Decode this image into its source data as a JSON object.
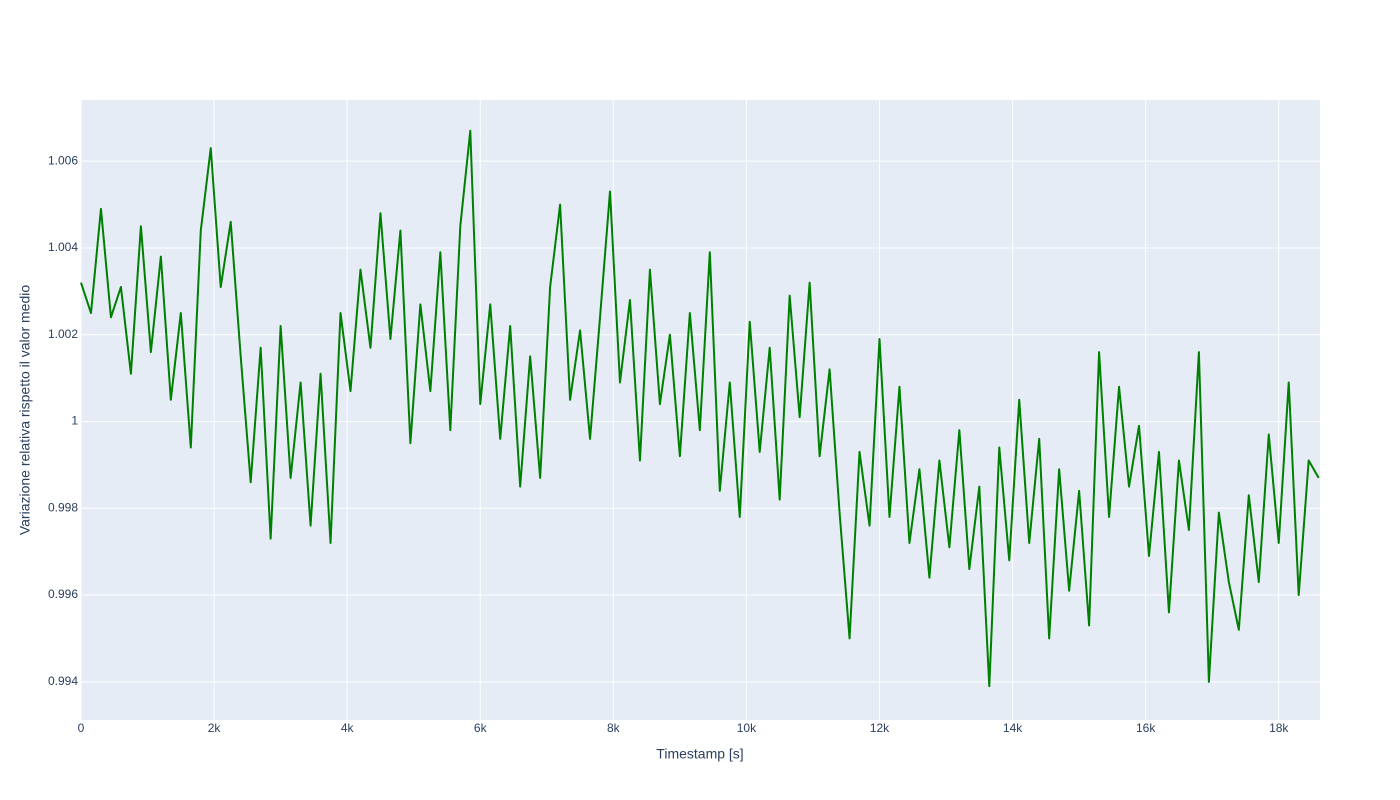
{
  "chart_data": {
    "type": "line",
    "x_label": "Timestamp [s]",
    "y_label": "Variazione relativa rispetto il valor medio",
    "color": "#008000",
    "grid": true,
    "xlim": [
      0,
      18620
    ],
    "ylim": [
      0.99312,
      1.00741
    ],
    "xticks": [
      0,
      {
        "value": 2000,
        "label": "2k"
      },
      {
        "value": 4000,
        "label": "4k"
      },
      {
        "value": 6000,
        "label": "6k"
      },
      {
        "value": 8000,
        "label": "8k"
      },
      {
        "value": 10000,
        "label": "10k"
      },
      {
        "value": 12000,
        "label": "12k"
      },
      {
        "value": 14000,
        "label": "14k"
      },
      {
        "value": 16000,
        "label": "16k"
      },
      {
        "value": 18000,
        "label": "18k"
      }
    ],
    "yticks": [
      0.994,
      0.996,
      0.998,
      1,
      1.002,
      1.004,
      1.006
    ],
    "x": [
      0,
      150,
      300,
      450,
      600,
      750,
      900,
      1050,
      1200,
      1350,
      1500,
      1650,
      1800,
      1950,
      2100,
      2250,
      2400,
      2550,
      2700,
      2850,
      3000,
      3150,
      3300,
      3450,
      3600,
      3750,
      3900,
      4050,
      4200,
      4350,
      4500,
      4650,
      4800,
      4950,
      5100,
      5250,
      5400,
      5550,
      5700,
      5850,
      6000,
      6150,
      6300,
      6450,
      6600,
      6750,
      6900,
      7050,
      7200,
      7350,
      7500,
      7650,
      7800,
      7950,
      8100,
      8250,
      8400,
      8550,
      8700,
      8850,
      9000,
      9150,
      9300,
      9450,
      9600,
      9750,
      9900,
      10050,
      10200,
      10350,
      10500,
      10650,
      10800,
      10950,
      11100,
      11250,
      11400,
      11550,
      11700,
      11850,
      12000,
      12150,
      12300,
      12450,
      12600,
      12750,
      12900,
      13050,
      13200,
      13350,
      13500,
      13650,
      13800,
      13950,
      14100,
      14250,
      14400,
      14550,
      14700,
      14850,
      15000,
      15150,
      15300,
      15450,
      15600,
      15750,
      15900,
      16050,
      16200,
      16350,
      16500,
      16650,
      16800,
      16950,
      17100,
      17250,
      17400,
      17550,
      17700,
      17850,
      18000,
      18150,
      18300,
      18450,
      18600
    ],
    "values": [
      1.0032,
      1.0025,
      1.0049,
      1.0024,
      1.0031,
      1.0011,
      1.0045,
      1.0016,
      1.0038,
      1.0005,
      1.0025,
      0.9994,
      1.0044,
      1.0063,
      1.0031,
      1.0046,
      1.0015,
      0.9986,
      1.0017,
      0.9973,
      1.0022,
      0.9987,
      1.0009,
      0.9976,
      1.0011,
      0.9972,
      1.0025,
      1.0007,
      1.0035,
      1.0017,
      1.0048,
      1.0019,
      1.0044,
      0.9995,
      1.0027,
      1.0007,
      1.0039,
      0.9998,
      1.0045,
      1.0067,
      1.0004,
      1.0027,
      0.9996,
      1.0022,
      0.9985,
      1.0015,
      0.9987,
      1.0031,
      1.005,
      1.0005,
      1.0021,
      0.9996,
      1.0024,
      1.0053,
      1.0009,
      1.0028,
      0.9991,
      1.0035,
      1.0004,
      1.002,
      0.9992,
      1.0025,
      0.9998,
      1.0039,
      0.9984,
      1.0009,
      0.9978,
      1.0023,
      0.9993,
      1.0017,
      0.9982,
      1.0029,
      1.0001,
      1.0032,
      0.9992,
      1.0012,
      0.9979,
      0.995,
      0.9993,
      0.9976,
      1.0019,
      0.9978,
      1.0008,
      0.9972,
      0.9989,
      0.9964,
      0.9991,
      0.9971,
      0.9998,
      0.9966,
      0.9985,
      0.9939,
      0.9994,
      0.9968,
      1.0005,
      0.9972,
      0.9996,
      0.995,
      0.9989,
      0.9961,
      0.9984,
      0.9953,
      1.0016,
      0.9978,
      1.0008,
      0.9985,
      0.9999,
      0.9969,
      0.9993,
      0.9956,
      0.9991,
      0.9975,
      1.0016,
      0.994,
      0.9979,
      0.9963,
      0.9952,
      0.9983,
      0.9963,
      0.9997,
      0.9972,
      1.0009,
      0.996,
      0.9991,
      0.9987
    ]
  }
}
